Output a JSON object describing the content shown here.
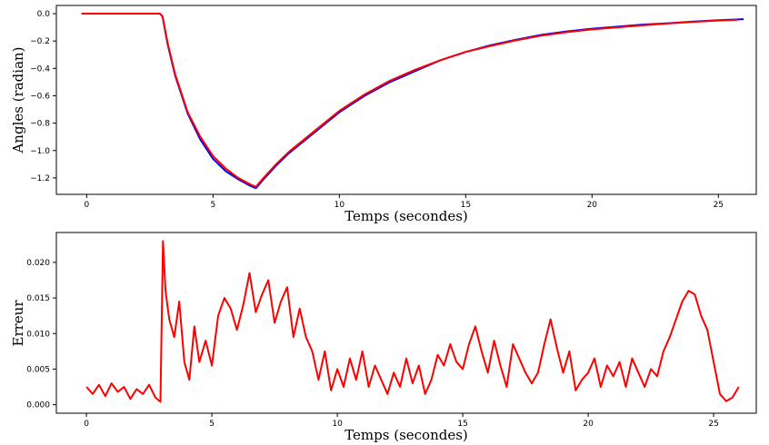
{
  "chart_data": [
    {
      "type": "line",
      "xlabel": "Temps (secondes)",
      "ylabel": "Angles (radian)",
      "xlim": [
        -1.2,
        26.5
      ],
      "ylim": [
        -1.32,
        0.06
      ],
      "xticks": [
        0,
        5,
        10,
        15,
        20,
        25
      ],
      "xtick_labels": [
        "0",
        "5",
        "10",
        "15",
        "20",
        "25"
      ],
      "yticks": [
        0.0,
        -0.2,
        -0.4,
        -0.6,
        -0.8,
        -1.0,
        -1.2
      ],
      "ytick_labels": [
        "0.0",
        "−0.2",
        "−0.4",
        "−0.6",
        "−0.8",
        "−1.0",
        "−1.2"
      ],
      "grid": false,
      "series": [
        {
          "color": "#0000ff",
          "x": [
            -0.2,
            2.9,
            3.0,
            3.2,
            3.5,
            4.0,
            4.5,
            5.0,
            5.5,
            6.0,
            6.5,
            6.7,
            7.0,
            7.5,
            8.0,
            9.0,
            10.0,
            11.0,
            12.0,
            13.0,
            14.0,
            15.0,
            16.0,
            17.0,
            18.0,
            19.0,
            20.0,
            21.0,
            22.0,
            23.0,
            24.0,
            25.0,
            26.0
          ],
          "y": [
            0.0,
            0.0,
            -0.02,
            -0.22,
            -0.45,
            -0.73,
            -0.92,
            -1.06,
            -1.15,
            -1.21,
            -1.26,
            -1.275,
            -1.21,
            -1.11,
            -1.02,
            -0.87,
            -0.72,
            -0.6,
            -0.5,
            -0.42,
            -0.34,
            -0.28,
            -0.23,
            -0.19,
            -0.155,
            -0.13,
            -0.11,
            -0.095,
            -0.08,
            -0.07,
            -0.058,
            -0.048,
            -0.04
          ]
        },
        {
          "color": "#ff0000",
          "x": [
            -0.2,
            2.9,
            3.0,
            3.2,
            3.5,
            4.0,
            4.5,
            5.0,
            5.5,
            6.0,
            6.5,
            6.7,
            7.0,
            7.5,
            8.0,
            9.0,
            10.0,
            11.0,
            12.0,
            13.0,
            14.0,
            15.0,
            16.0,
            17.0,
            18.0,
            19.0,
            20.0,
            21.0,
            22.0,
            23.0,
            24.0,
            25.0,
            25.8
          ],
          "y": [
            0.0,
            0.0,
            -0.02,
            -0.21,
            -0.44,
            -0.72,
            -0.9,
            -1.04,
            -1.13,
            -1.2,
            -1.25,
            -1.265,
            -1.2,
            -1.1,
            -1.01,
            -0.86,
            -0.71,
            -0.59,
            -0.49,
            -0.41,
            -0.34,
            -0.28,
            -0.235,
            -0.195,
            -0.16,
            -0.135,
            -0.115,
            -0.1,
            -0.085,
            -0.072,
            -0.06,
            -0.05,
            -0.045
          ]
        }
      ]
    },
    {
      "type": "line",
      "xlabel": "Temps (secondes)",
      "ylabel": "Erreur",
      "xlim": [
        -1.2,
        26.7
      ],
      "ylim": [
        -0.0012,
        0.0242
      ],
      "xticks": [
        0,
        5,
        10,
        15,
        20,
        25
      ],
      "xtick_labels": [
        "0",
        "5",
        "10",
        "15",
        "20",
        "25"
      ],
      "yticks": [
        0.0,
        0.005,
        0.01,
        0.015,
        0.02
      ],
      "ytick_labels": [
        "0.000",
        "0.005",
        "0.010",
        "0.015",
        "0.020"
      ],
      "grid": false,
      "series": [
        {
          "color": "#ff0000",
          "x": [
            0,
            0.25,
            0.5,
            0.75,
            1.0,
            1.25,
            1.5,
            1.75,
            2.0,
            2.25,
            2.5,
            2.75,
            2.95,
            3.05,
            3.15,
            3.3,
            3.5,
            3.7,
            3.9,
            4.1,
            4.3,
            4.5,
            4.75,
            5.0,
            5.25,
            5.5,
            5.75,
            6.0,
            6.25,
            6.5,
            6.75,
            7.0,
            7.25,
            7.5,
            7.75,
            8.0,
            8.25,
            8.5,
            8.75,
            9.0,
            9.25,
            9.5,
            9.75,
            10.0,
            10.25,
            10.5,
            10.75,
            11.0,
            11.25,
            11.5,
            11.75,
            12.0,
            12.25,
            12.5,
            12.75,
            13.0,
            13.25,
            13.5,
            13.75,
            14.0,
            14.25,
            14.5,
            14.75,
            15.0,
            15.25,
            15.5,
            15.75,
            16.0,
            16.25,
            16.5,
            16.75,
            17.0,
            17.25,
            17.5,
            17.75,
            18.0,
            18.25,
            18.5,
            18.75,
            19.0,
            19.25,
            19.5,
            19.75,
            20.0,
            20.25,
            20.5,
            20.75,
            21.0,
            21.25,
            21.5,
            21.75,
            22.0,
            22.25,
            22.5,
            22.75,
            23.0,
            23.25,
            23.5,
            23.75,
            24.0,
            24.25,
            24.5,
            24.75,
            25.0,
            25.25,
            25.5,
            25.75,
            26.0
          ],
          "y": [
            0.0025,
            0.0015,
            0.0028,
            0.0012,
            0.003,
            0.0018,
            0.0025,
            0.0008,
            0.0022,
            0.0015,
            0.0028,
            0.001,
            0.0004,
            0.023,
            0.016,
            0.012,
            0.0095,
            0.0145,
            0.006,
            0.0035,
            0.011,
            0.006,
            0.009,
            0.0055,
            0.0125,
            0.015,
            0.0135,
            0.0105,
            0.014,
            0.0185,
            0.013,
            0.0155,
            0.0175,
            0.0115,
            0.0145,
            0.0165,
            0.0095,
            0.0135,
            0.0095,
            0.0075,
            0.0035,
            0.0075,
            0.002,
            0.005,
            0.0025,
            0.0065,
            0.0035,
            0.0075,
            0.0025,
            0.0055,
            0.0035,
            0.0015,
            0.0045,
            0.0025,
            0.0065,
            0.003,
            0.0055,
            0.0015,
            0.0035,
            0.007,
            0.0055,
            0.0085,
            0.006,
            0.005,
            0.0085,
            0.011,
            0.0075,
            0.0045,
            0.009,
            0.0055,
            0.0025,
            0.0085,
            0.0065,
            0.0045,
            0.003,
            0.0045,
            0.0085,
            0.012,
            0.008,
            0.0045,
            0.0075,
            0.002,
            0.0035,
            0.0045,
            0.0065,
            0.0025,
            0.0055,
            0.004,
            0.006,
            0.0025,
            0.0065,
            0.0045,
            0.0025,
            0.005,
            0.004,
            0.0075,
            0.0095,
            0.012,
            0.0145,
            0.016,
            0.0155,
            0.0125,
            0.0105,
            0.006,
            0.0015,
            0.0005,
            0.001,
            0.0025
          ]
        }
      ]
    }
  ]
}
